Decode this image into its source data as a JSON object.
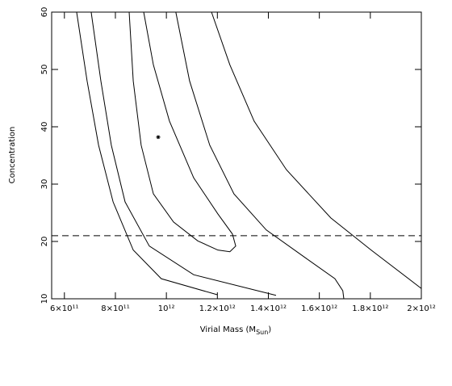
{
  "chart_data": {
    "type": "line",
    "xlabel_parts": [
      "Virial Mass (M",
      "Sun",
      ")"
    ],
    "ylabel": "Concentration",
    "xlim": [
      550000000000.0,
      2000000000000.0
    ],
    "ylim": [
      10,
      60
    ],
    "xticks": [
      {
        "value": 600000000000.0,
        "label": "6×10¹¹"
      },
      {
        "value": 800000000000.0,
        "label": "8×10¹¹"
      },
      {
        "value": 1000000000000.0,
        "label": "10¹²"
      },
      {
        "value": 1200000000000.0,
        "label": "1.2×10¹²"
      },
      {
        "value": 1400000000000.0,
        "label": "1.4×10¹²"
      },
      {
        "value": 1600000000000.0,
        "label": "1.6×10¹²"
      },
      {
        "value": 1800000000000.0,
        "label": "1.8×10¹²"
      },
      {
        "value": 2000000000000.0,
        "label": "2×10¹²"
      }
    ],
    "yticks": [
      10,
      20,
      30,
      40,
      50,
      60
    ],
    "series": [
      {
        "color": "#000000",
        "x": [
          648000000000.0,
          689000000000.0,
          734000000000.0,
          791000000000.0,
          870000000000.0,
          980000000000.0,
          1200000000000.0
        ],
        "values": [
          60,
          48.0,
          36.8,
          26.9,
          18.5,
          13.5,
          10.7
        ]
      },
      {
        "color": "#000000",
        "x": [
          705000000000.0,
          743000000000.0,
          784000000000.0,
          838000000000.0,
          933000000000.0,
          1107000000000.0,
          1430000000000.0
        ],
        "values": [
          60,
          48.0,
          36.8,
          26.9,
          19.2,
          14.2,
          10.6
        ]
      },
      {
        "color": "#000000",
        "x": [
          911000000000.0,
          949000000000.0,
          1012000000000.0,
          1107000000000.0,
          1202000000000.0,
          1259000000000.0,
          1272000000000.0,
          1249000000000.0,
          1202000000000.0,
          1123000000000.0,
          1028000000000.0,
          949000000000.0,
          901000000000.0,
          870000000000.0,
          854000000000.0
        ],
        "values": [
          60,
          50.8,
          41.0,
          31.1,
          24.8,
          21.3,
          19.2,
          18.2,
          18.5,
          20.1,
          23.4,
          28.3,
          36.8,
          48.0,
          60
        ]
      },
      {
        "color": "#000000",
        "x": [
          1037000000000.0,
          1091000000000.0,
          1170000000000.0,
          1265000000000.0,
          1392000000000.0,
          1550000000000.0,
          1661000000000.0,
          1692000000000.0,
          1696000000000.0
        ],
        "values": [
          60,
          48.0,
          36.8,
          28.3,
          22.0,
          17.0,
          13.5,
          11.4,
          10
        ]
      },
      {
        "color": "#000000",
        "x": [
          1177000000000.0,
          1249000000000.0,
          1344000000000.0,
          1471000000000.0,
          1645000000000.0,
          1803000000000.0,
          2000000000000.0
        ],
        "values": [
          60,
          50.8,
          41.0,
          32.5,
          24.1,
          18.5,
          11.8
        ]
      }
    ],
    "hlines": [
      {
        "value": 21,
        "style": "dashed",
        "color": "#000000"
      }
    ],
    "markers": [
      {
        "x": 968000000000.0,
        "y": 38.2,
        "symbol": "star",
        "color": "#000000"
      }
    ]
  }
}
